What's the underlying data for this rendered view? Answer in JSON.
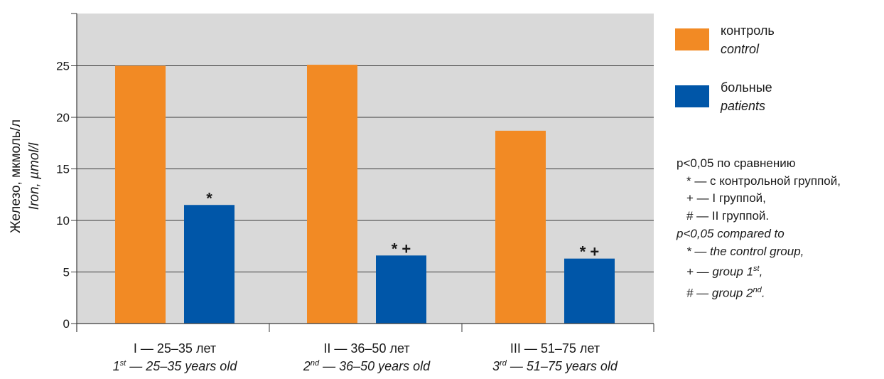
{
  "chart_data": {
    "type": "bar",
    "ylabel_ru": "Железо, мкмоль/л",
    "ylabel_en": "Iron, µmol/l",
    "ylim": [
      0,
      30
    ],
    "yticks": [
      0,
      5,
      10,
      15,
      20,
      25
    ],
    "grid": true,
    "legend_position": "right",
    "categories": [
      {
        "ru": "I — 25–35 лет",
        "en_num": "1",
        "en_sup": "st",
        "en_rest": " — 25–35 years old"
      },
      {
        "ru": "II — 36–50 лет",
        "en_num": "2",
        "en_sup": "nd",
        "en_rest": " — 36–50 years old"
      },
      {
        "ru": "III — 51–75 лет",
        "en_num": "3",
        "en_sup": "rd",
        "en_rest": " — 51–75 years old"
      }
    ],
    "series": [
      {
        "name": "контроль",
        "name_en": "control",
        "color": "#f28a24",
        "values": [
          25.0,
          25.1,
          18.7
        ]
      },
      {
        "name": "больные",
        "name_en": "patients",
        "color": "#0056a8",
        "values": [
          11.5,
          6.6,
          6.3
        ]
      }
    ],
    "markers": [
      {
        "category": 0,
        "series": 1,
        "text": "*"
      },
      {
        "category": 1,
        "series": 1,
        "text": "* +"
      },
      {
        "category": 2,
        "series": 1,
        "text": "* +"
      }
    ],
    "plot_background": "#d9d9d9"
  },
  "legend": {
    "control_ru": "контроль",
    "control_en": "control",
    "patients_ru": "больные",
    "patients_en": "patients"
  },
  "notes": {
    "line1": "p<0,05 по сравнению",
    "line2": "* — с контрольной группой,",
    "line3": "+ — I группой,",
    "line4": "# — II группой.",
    "line5": "p<0,05 compared to",
    "line6": "* — the control group,",
    "line7_pre": "+ — group 1",
    "line7_sup": "st",
    "line7_post": ",",
    "line8_pre": "# — group 2",
    "line8_sup": "nd",
    "line8_post": "."
  }
}
